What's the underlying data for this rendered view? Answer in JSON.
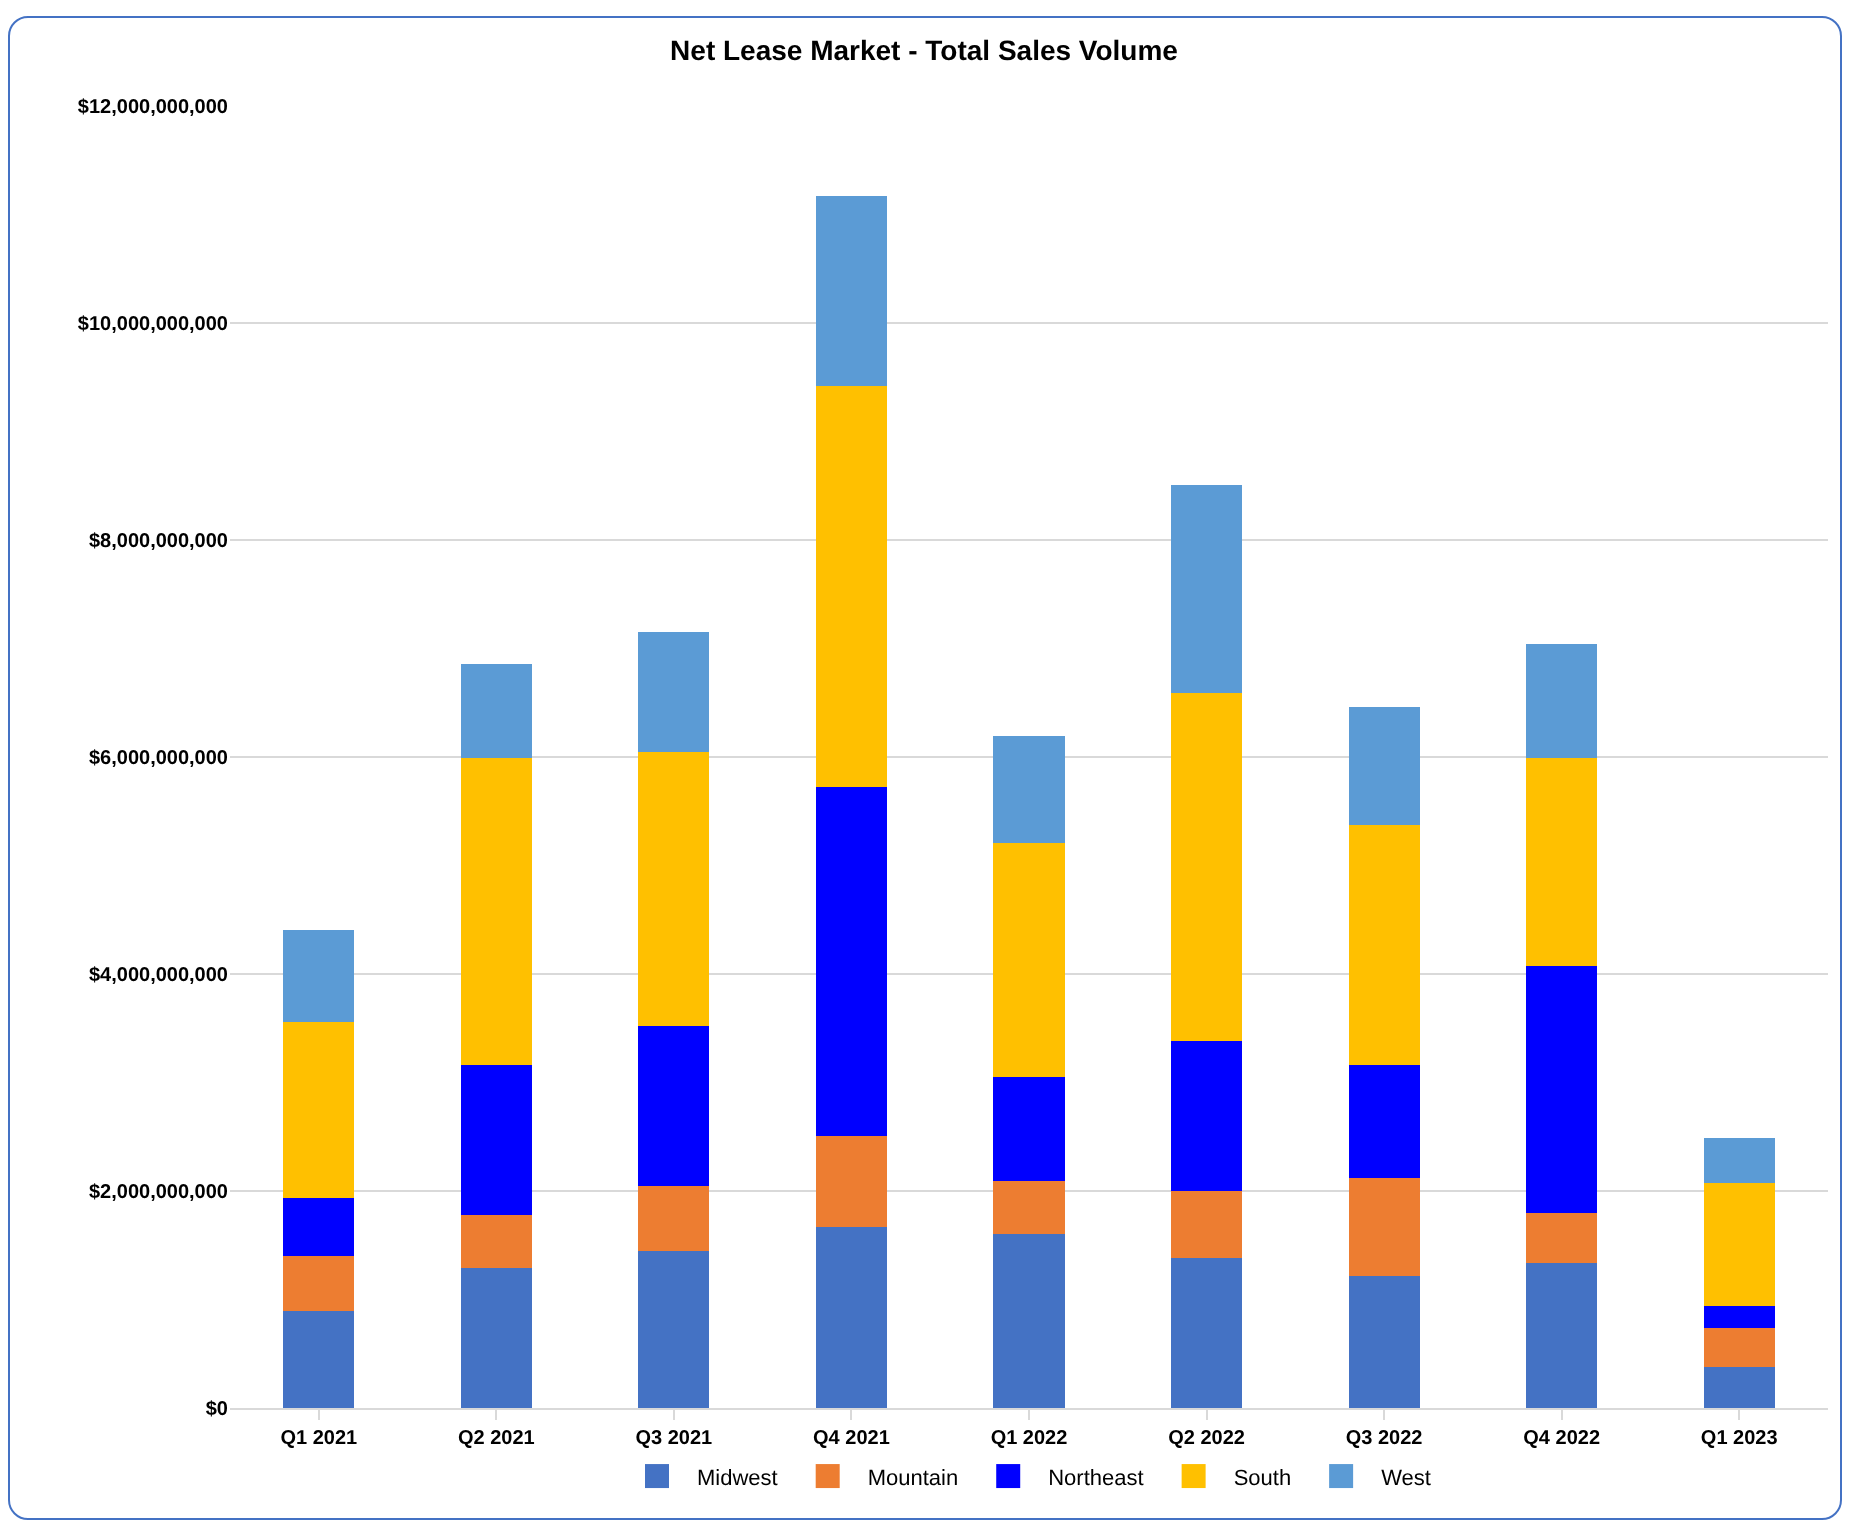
{
  "chart_data": {
    "type": "bar",
    "title": "Net Lease Market - Total Sales Volume",
    "stacked": true,
    "categories": [
      "Q1 2021",
      "Q2 2021",
      "Q3 2021",
      "Q4 2021",
      "Q1 2022",
      "Q2 2022",
      "Q3 2022",
      "Q4 2022",
      "Q1 2023"
    ],
    "series": [
      {
        "name": "Midwest",
        "color": "#4472c4",
        "values": [
          890000000,
          1290000000,
          1450000000,
          1670000000,
          1600000000,
          1380000000,
          1220000000,
          1340000000,
          380000000
        ]
      },
      {
        "name": "Mountain",
        "color": "#ed7d31",
        "values": [
          510000000,
          490000000,
          600000000,
          840000000,
          490000000,
          620000000,
          900000000,
          460000000,
          360000000
        ]
      },
      {
        "name": "Northeast",
        "color": "#0000ff",
        "values": [
          540000000,
          1380000000,
          1470000000,
          3210000000,
          960000000,
          1380000000,
          1040000000,
          2270000000,
          200000000
        ]
      },
      {
        "name": "South",
        "color": "#ffc000",
        "values": [
          1620000000,
          2830000000,
          2530000000,
          3700000000,
          2160000000,
          3210000000,
          2210000000,
          1920000000,
          1130000000
        ]
      },
      {
        "name": "West",
        "color": "#5b9bd5",
        "values": [
          850000000,
          870000000,
          1100000000,
          1750000000,
          980000000,
          1920000000,
          1090000000,
          1050000000,
          420000000
        ]
      }
    ],
    "ylim": [
      0,
      12000000000
    ],
    "yticks": [
      {
        "value": 0,
        "label": "$0"
      },
      {
        "value": 2000000000,
        "label": "$2,000,000,000"
      },
      {
        "value": 4000000000,
        "label": "$4,000,000,000"
      },
      {
        "value": 6000000000,
        "label": "$6,000,000,000"
      },
      {
        "value": 8000000000,
        "label": "$8,000,000,000"
      },
      {
        "value": 10000000000,
        "label": "$10,000,000,000"
      },
      {
        "value": 12000000000,
        "label": "$12,000,000,000"
      }
    ],
    "grid": "y",
    "legend": "bottom"
  }
}
